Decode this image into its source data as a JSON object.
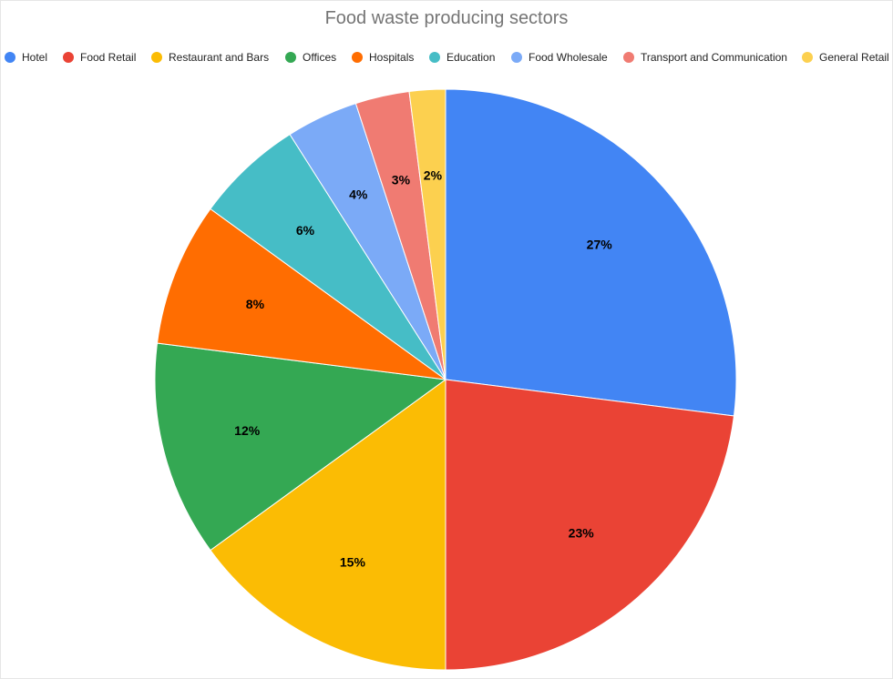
{
  "chart_data": {
    "type": "pie",
    "title": "Food waste producing sectors",
    "legend_position": "top",
    "slices": [
      {
        "name": "Hotel",
        "value": 27,
        "label": "27%",
        "color": "#4285f4"
      },
      {
        "name": "Food Retail",
        "value": 23,
        "label": "23%",
        "color": "#ea4335"
      },
      {
        "name": "Restaurant and Bars",
        "value": 15,
        "label": "15%",
        "color": "#fbbc04"
      },
      {
        "name": "Offices",
        "value": 12,
        "label": "12%",
        "color": "#34a853"
      },
      {
        "name": "Hospitals",
        "value": 8,
        "label": "8%",
        "color": "#ff6d01"
      },
      {
        "name": "Education",
        "value": 6,
        "label": "6%",
        "color": "#46bdc6"
      },
      {
        "name": "Food Wholesale",
        "value": 4,
        "label": "4%",
        "color": "#7baaf7"
      },
      {
        "name": "Transport and Communication",
        "value": 3,
        "label": "3%",
        "color": "#f07b72"
      },
      {
        "name": "General Retail",
        "value": 2,
        "label": "2%",
        "color": "#fcd04f"
      }
    ]
  }
}
